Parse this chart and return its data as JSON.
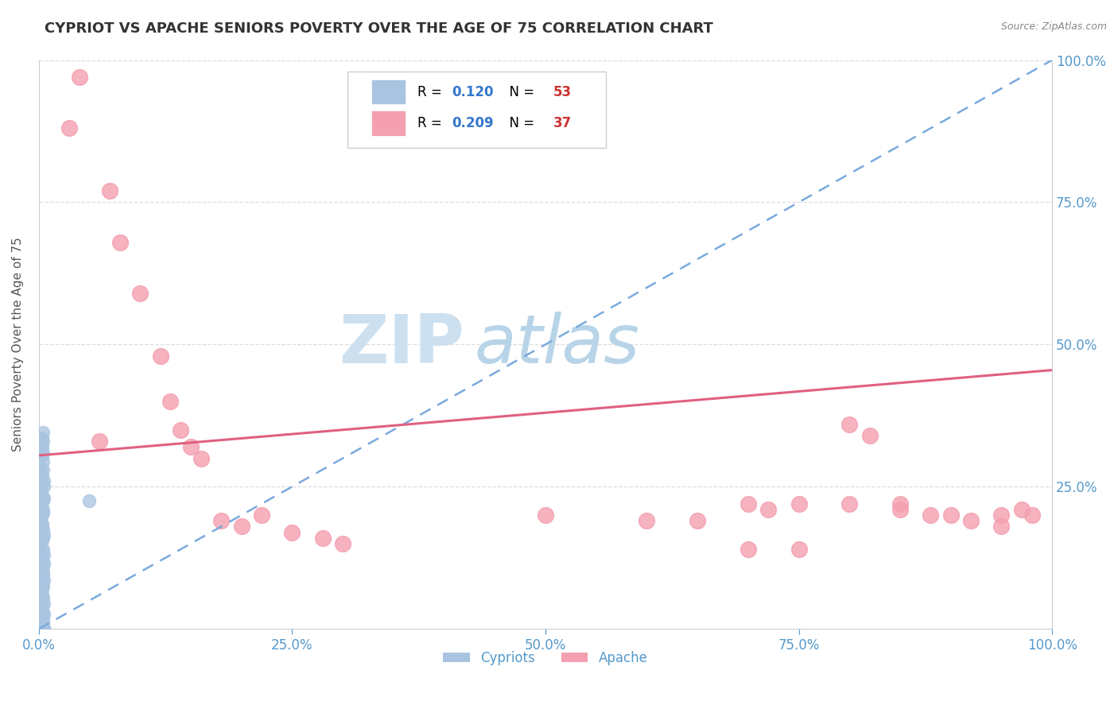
{
  "title": "CYPRIOT VS APACHE SENIORS POVERTY OVER THE AGE OF 75 CORRELATION CHART",
  "source_text": "Source: ZipAtlas.com",
  "ylabel": "Seniors Poverty Over the Age of 75",
  "xlim": [
    0,
    1
  ],
  "ylim": [
    0,
    1
  ],
  "xtick_labels": [
    "0.0%",
    "25.0%",
    "50.0%",
    "75.0%",
    "100.0%"
  ],
  "xtick_vals": [
    0,
    0.25,
    0.5,
    0.75,
    1.0
  ],
  "right_ytick_labels": [
    "100.0%",
    "75.0%",
    "50.0%",
    "25.0%"
  ],
  "right_ytick_vals": [
    1.0,
    0.75,
    0.5,
    0.25
  ],
  "legend_R_cypriot": "0.120",
  "legend_N_cypriot": "53",
  "legend_R_apache": "0.209",
  "legend_N_apache": "37",
  "cypriot_color": "#a8c4e0",
  "apache_color": "#f4a0b0",
  "cypriot_line_color": "#7aaadd",
  "apache_line_color": "#e06080",
  "watermark_zip": "ZIP",
  "watermark_atlas": "atlas",
  "watermark_color_zip": "#cce0f0",
  "watermark_color_atlas": "#b8d4e8",
  "background_color": "#ffffff",
  "grid_color": "#dddddd",
  "cypriot_x": [
    0.003,
    0.004,
    0.002,
    0.005,
    0.003,
    0.004,
    0.003,
    0.005,
    0.004,
    0.003,
    0.004,
    0.005,
    0.003,
    0.004,
    0.003,
    0.005,
    0.004,
    0.003,
    0.004,
    0.005,
    0.003,
    0.004,
    0.003,
    0.005,
    0.004,
    0.003,
    0.004,
    0.003,
    0.005,
    0.004,
    0.003,
    0.004,
    0.003,
    0.005,
    0.004,
    0.003,
    0.004,
    0.003,
    0.005,
    0.004,
    0.003,
    0.004,
    0.003,
    0.005,
    0.004,
    0.003,
    0.004,
    0.003,
    0.005,
    0.004,
    0.003,
    0.05,
    0.004
  ],
  "cypriot_y": [
    0.335,
    0.31,
    0.285,
    0.26,
    0.235,
    0.21,
    0.185,
    0.165,
    0.14,
    0.12,
    0.1,
    0.085,
    0.07,
    0.055,
    0.04,
    0.025,
    0.015,
    0.008,
    0.003,
    0.001,
    0.32,
    0.295,
    0.27,
    0.25,
    0.225,
    0.2,
    0.175,
    0.155,
    0.13,
    0.11,
    0.09,
    0.075,
    0.06,
    0.045,
    0.03,
    0.02,
    0.01,
    0.005,
    0.002,
    0.33,
    0.305,
    0.28,
    0.255,
    0.23,
    0.205,
    0.18,
    0.16,
    0.135,
    0.115,
    0.095,
    0.08,
    0.225,
    0.345
  ],
  "apache_x": [
    0.04,
    0.06,
    0.07,
    0.08,
    0.1,
    0.12,
    0.13,
    0.14,
    0.15,
    0.16,
    0.18,
    0.2,
    0.22,
    0.25,
    0.28,
    0.3,
    0.5,
    0.6,
    0.65,
    0.7,
    0.72,
    0.75,
    0.8,
    0.82,
    0.85,
    0.88,
    0.9,
    0.92,
    0.95,
    0.97,
    0.98,
    0.95,
    0.7,
    0.75,
    0.8,
    0.85,
    0.03
  ],
  "apache_y": [
    0.97,
    0.33,
    0.77,
    0.68,
    0.59,
    0.48,
    0.4,
    0.35,
    0.32,
    0.3,
    0.19,
    0.18,
    0.2,
    0.17,
    0.16,
    0.15,
    0.2,
    0.19,
    0.19,
    0.22,
    0.21,
    0.22,
    0.36,
    0.34,
    0.22,
    0.2,
    0.2,
    0.19,
    0.18,
    0.21,
    0.2,
    0.2,
    0.14,
    0.14,
    0.22,
    0.21,
    0.88
  ],
  "cypriot_trend_x": [
    0.0,
    1.0
  ],
  "cypriot_trend_y": [
    0.0,
    1.0
  ],
  "apache_trend_x": [
    0.0,
    1.0
  ],
  "apache_trend_y": [
    0.305,
    0.455
  ]
}
